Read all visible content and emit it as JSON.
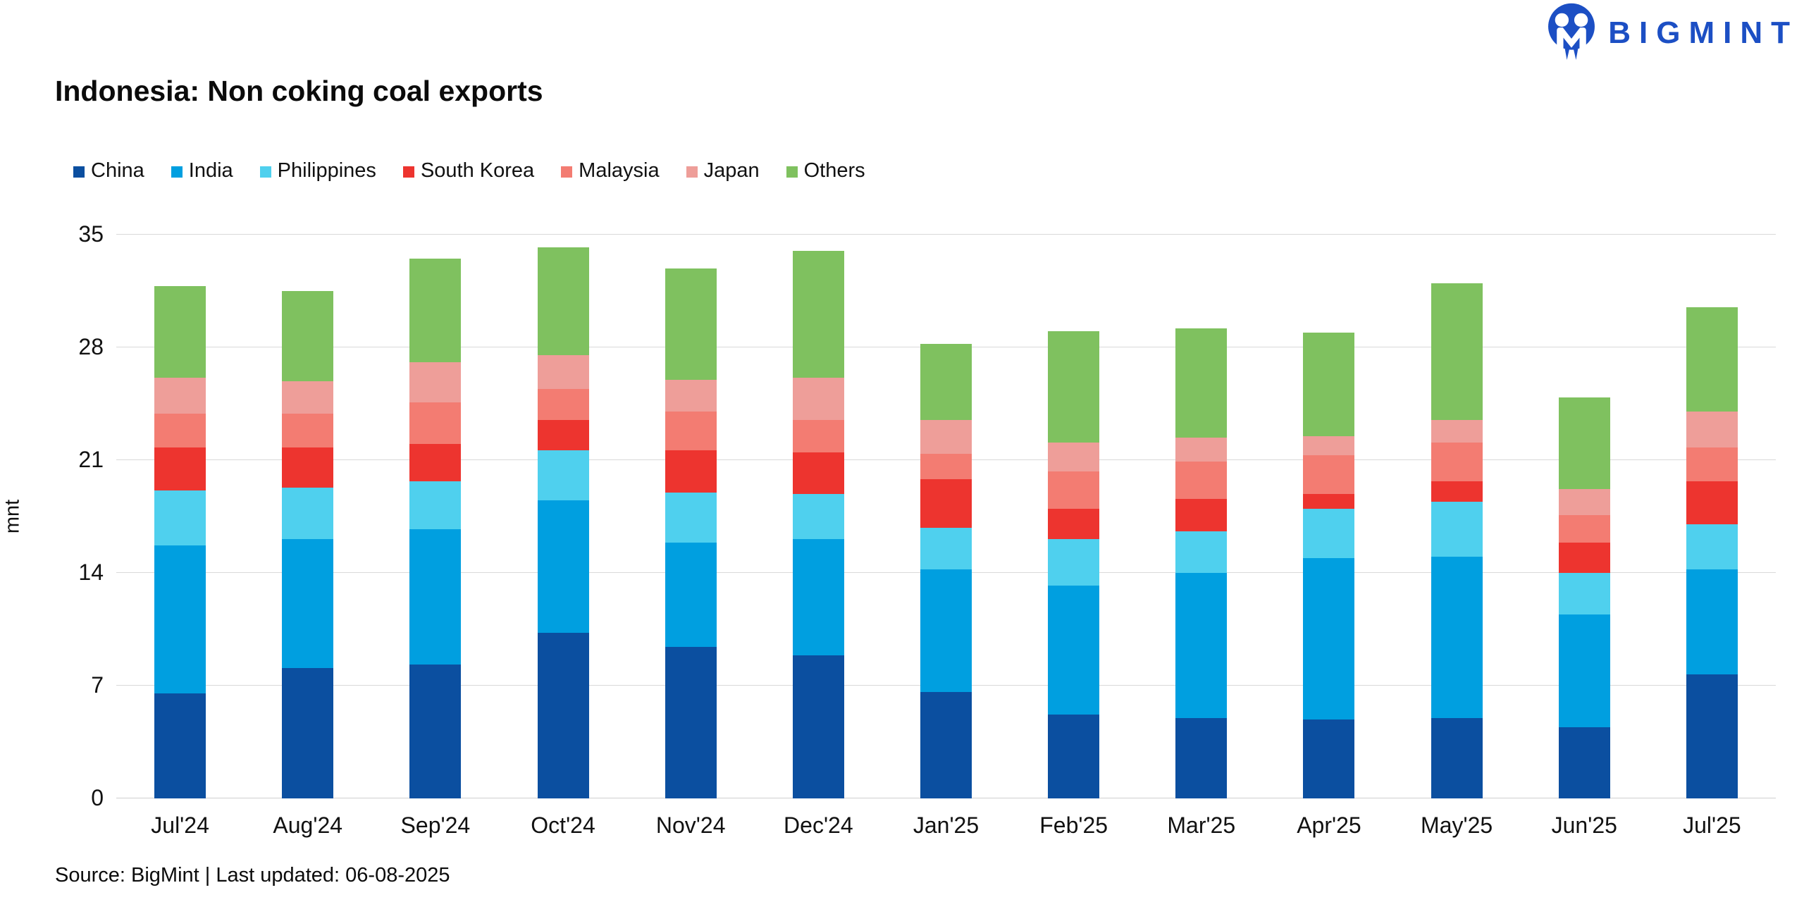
{
  "logo": {
    "text": "BIGMINT",
    "color": "#1c4fc4"
  },
  "title": "Indonesia: Non coking coal exports",
  "source_line": "Source: BigMint | Last updated: 06-08-2025",
  "y_axis": {
    "label": "mnt",
    "ticks": [
      0,
      7,
      14,
      21,
      28,
      35
    ]
  },
  "chart_data": {
    "type": "bar",
    "stacked": true,
    "title": "Indonesia: Non coking coal exports",
    "xlabel": "",
    "ylabel": "mnt",
    "ylim": [
      0,
      35
    ],
    "grid": true,
    "legend_position": "top",
    "categories": [
      "Jul'24",
      "Aug'24",
      "Sep'24",
      "Oct'24",
      "Nov'24",
      "Dec'24",
      "Jan'25",
      "Feb'25",
      "Mar'25",
      "Apr'25",
      "May'25",
      "Jun'25",
      "Jul'25"
    ],
    "series": [
      {
        "name": "China",
        "color": "#0b4fa0",
        "values": [
          6.5,
          8.1,
          8.3,
          10.3,
          9.4,
          8.9,
          6.6,
          5.2,
          5.0,
          4.9,
          5.0,
          4.4,
          7.7
        ]
      },
      {
        "name": "India",
        "color": "#009fe0",
        "values": [
          9.2,
          8.0,
          8.4,
          8.2,
          6.5,
          7.2,
          7.6,
          8.0,
          9.0,
          10.0,
          10.0,
          7.0,
          6.5
        ]
      },
      {
        "name": "Philippines",
        "color": "#4fd0ee",
        "values": [
          3.4,
          3.2,
          3.0,
          3.1,
          3.1,
          2.8,
          2.6,
          2.9,
          2.6,
          3.1,
          3.4,
          2.6,
          2.8
        ]
      },
      {
        "name": "South Korea",
        "color": "#ed342f",
        "values": [
          2.7,
          2.5,
          2.3,
          1.9,
          2.6,
          2.6,
          3.0,
          1.9,
          2.0,
          0.9,
          1.3,
          1.9,
          2.7
        ]
      },
      {
        "name": "Malaysia",
        "color": "#f37c72",
        "values": [
          2.1,
          2.1,
          2.6,
          1.9,
          2.4,
          2.0,
          1.6,
          2.3,
          2.3,
          2.4,
          2.4,
          1.7,
          2.1
        ]
      },
      {
        "name": "Japan",
        "color": "#ee9e99",
        "values": [
          2.2,
          2.0,
          2.5,
          2.1,
          2.0,
          2.6,
          2.1,
          1.8,
          1.5,
          1.2,
          1.4,
          1.6,
          2.2
        ]
      },
      {
        "name": "Others",
        "color": "#7fc15f",
        "values": [
          5.7,
          5.6,
          6.4,
          6.7,
          6.9,
          7.9,
          4.7,
          6.9,
          6.8,
          6.4,
          8.5,
          5.7,
          6.5
        ]
      }
    ],
    "totals": [
      31.8,
      31.5,
      33.5,
      34.2,
      32.9,
      34.0,
      28.2,
      29.0,
      29.2,
      28.9,
      32.0,
      24.9,
      30.5
    ]
  }
}
